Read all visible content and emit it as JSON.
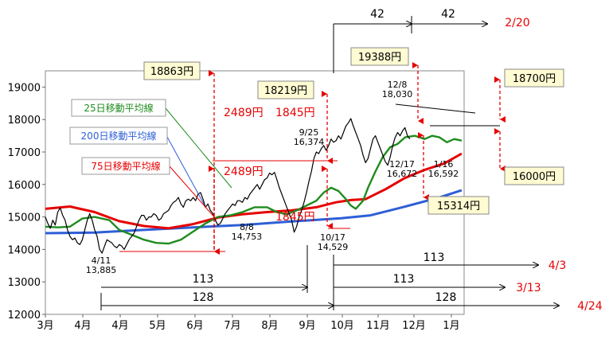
{
  "chart_data": {
    "type": "line",
    "title": "",
    "xlabel": "",
    "ylabel": "",
    "ylim": [
      12000,
      19500
    ],
    "y_ticks": [
      12000,
      13000,
      14000,
      15000,
      16000,
      17000,
      18000,
      19000
    ],
    "x_tick_labels": [
      "3月",
      "4月",
      "4月",
      "5月",
      "6月",
      "7月",
      "8月",
      "9月",
      "10月",
      "11月",
      "12月",
      "1月"
    ],
    "colors": {
      "price": "#000000",
      "ma25": "#1e8c1e",
      "ma75": "#e60000",
      "ma200": "#2e5fd6",
      "red": "#e60000",
      "box_fill": "#fffbd2",
      "box_border": "#8a8a8a"
    },
    "series": [
      {
        "name": "25日移動平均線",
        "color": "#1e8c1e",
        "points": [
          [
            0,
            14700
          ],
          [
            5,
            14680
          ],
          [
            10,
            14700
          ],
          [
            15,
            14950
          ],
          [
            20,
            15000
          ],
          [
            26,
            14900
          ],
          [
            30,
            14600
          ],
          [
            35,
            14450
          ],
          [
            40,
            14300
          ],
          [
            45,
            14200
          ],
          [
            50,
            14180
          ],
          [
            55,
            14300
          ],
          [
            60,
            14550
          ],
          [
            65,
            14800
          ],
          [
            70,
            15000
          ],
          [
            75,
            15050
          ],
          [
            80,
            15150
          ],
          [
            85,
            15300
          ],
          [
            90,
            15300
          ],
          [
            94,
            15150
          ],
          [
            98,
            15080
          ],
          [
            102,
            15200
          ],
          [
            106,
            15350
          ],
          [
            110,
            15500
          ],
          [
            113,
            15750
          ],
          [
            116,
            15900
          ],
          [
            119,
            15800
          ],
          [
            122,
            15550
          ],
          [
            124,
            15350
          ],
          [
            126,
            15250
          ],
          [
            129,
            15500
          ],
          [
            131,
            15900
          ],
          [
            134,
            16400
          ],
          [
            137,
            16850
          ],
          [
            140,
            17150
          ],
          [
            143,
            17250
          ],
          [
            146,
            17450
          ],
          [
            150,
            17500
          ],
          [
            154,
            17400
          ],
          [
            157,
            17500
          ],
          [
            160,
            17450
          ],
          [
            163,
            17300
          ],
          [
            166,
            17400
          ],
          [
            169,
            17350
          ]
        ]
      },
      {
        "name": "75日移動平均線",
        "color": "#e60000",
        "points": [
          [
            0,
            15250
          ],
          [
            10,
            15320
          ],
          [
            20,
            15150
          ],
          [
            30,
            14870
          ],
          [
            40,
            14720
          ],
          [
            50,
            14650
          ],
          [
            60,
            14780
          ],
          [
            70,
            14980
          ],
          [
            80,
            15080
          ],
          [
            90,
            15150
          ],
          [
            100,
            15200
          ],
          [
            110,
            15300
          ],
          [
            118,
            15450
          ],
          [
            124,
            15520
          ],
          [
            130,
            15550
          ],
          [
            138,
            15850
          ],
          [
            146,
            16200
          ],
          [
            154,
            16450
          ],
          [
            162,
            16650
          ],
          [
            169,
            16950
          ]
        ]
      },
      {
        "name": "200日移動平均線",
        "color": "#2e5fd6",
        "points": [
          [
            0,
            14500
          ],
          [
            20,
            14520
          ],
          [
            40,
            14600
          ],
          [
            60,
            14680
          ],
          [
            80,
            14750
          ],
          [
            100,
            14860
          ],
          [
            120,
            14960
          ],
          [
            132,
            15050
          ],
          [
            145,
            15300
          ],
          [
            160,
            15600
          ],
          [
            169,
            15820
          ]
        ]
      },
      {
        "name": "",
        "color": "#000000",
        "points": [
          [
            0,
            15000
          ],
          [
            1,
            14800
          ],
          [
            2,
            14650
          ],
          [
            3,
            14900
          ],
          [
            4,
            14750
          ],
          [
            5,
            15150
          ],
          [
            6,
            15280
          ],
          [
            7,
            15050
          ],
          [
            8,
            14900
          ],
          [
            9,
            14600
          ],
          [
            10,
            14400
          ],
          [
            11,
            14300
          ],
          [
            12,
            14350
          ],
          [
            13,
            14200
          ],
          [
            14,
            14150
          ],
          [
            15,
            14300
          ],
          [
            16,
            14600
          ],
          [
            17,
            14900
          ],
          [
            18,
            15100
          ],
          [
            19,
            14900
          ],
          [
            20,
            14600
          ],
          [
            21,
            14400
          ],
          [
            22,
            14000
          ],
          [
            23,
            13885
          ],
          [
            24,
            14100
          ],
          [
            25,
            14300
          ],
          [
            26,
            14250
          ],
          [
            27,
            14200
          ],
          [
            28,
            14100
          ],
          [
            29,
            14050
          ],
          [
            30,
            14150
          ],
          [
            31,
            14100
          ],
          [
            32,
            14000
          ],
          [
            33,
            14150
          ],
          [
            34,
            14300
          ],
          [
            35,
            14400
          ],
          [
            36,
            14500
          ],
          [
            37,
            14700
          ],
          [
            38,
            14900
          ],
          [
            39,
            15050
          ],
          [
            40,
            15050
          ],
          [
            41,
            14900
          ],
          [
            42,
            15000
          ],
          [
            43,
            15000
          ],
          [
            44,
            15100
          ],
          [
            45,
            15050
          ],
          [
            46,
            14900
          ],
          [
            47,
            14950
          ],
          [
            48,
            15100
          ],
          [
            49,
            15150
          ],
          [
            50,
            15200
          ],
          [
            51,
            15350
          ],
          [
            52,
            15450
          ],
          [
            53,
            15500
          ],
          [
            54,
            15600
          ],
          [
            55,
            15400
          ],
          [
            56,
            15300
          ],
          [
            57,
            15500
          ],
          [
            58,
            15550
          ],
          [
            59,
            15500
          ],
          [
            60,
            15600
          ],
          [
            61,
            15500
          ],
          [
            62,
            15700
          ],
          [
            63,
            15750
          ],
          [
            64,
            15550
          ],
          [
            65,
            15300
          ],
          [
            66,
            15400
          ],
          [
            67,
            15200
          ],
          [
            68,
            15100
          ],
          [
            69,
            14900
          ],
          [
            70,
            14753
          ],
          [
            71,
            14800
          ],
          [
            72,
            14950
          ],
          [
            73,
            15100
          ],
          [
            74,
            15200
          ],
          [
            75,
            15300
          ],
          [
            76,
            15400
          ],
          [
            77,
            15350
          ],
          [
            78,
            15500
          ],
          [
            79,
            15500
          ],
          [
            80,
            15450
          ],
          [
            81,
            15600
          ],
          [
            82,
            15550
          ],
          [
            83,
            15700
          ],
          [
            84,
            15800
          ],
          [
            85,
            15900
          ],
          [
            86,
            16000
          ],
          [
            87,
            15850
          ],
          [
            88,
            16000
          ],
          [
            89,
            16150
          ],
          [
            90,
            16200
          ],
          [
            91,
            16350
          ],
          [
            92,
            16300
          ],
          [
            93,
            16374
          ],
          [
            94,
            16150
          ],
          [
            95,
            15900
          ],
          [
            96,
            15700
          ],
          [
            97,
            15500
          ],
          [
            98,
            15300
          ],
          [
            99,
            15100
          ],
          [
            100,
            14900
          ],
          [
            101,
            14529
          ],
          [
            102,
            14700
          ],
          [
            103,
            15000
          ],
          [
            104,
            15200
          ],
          [
            105,
            15450
          ],
          [
            106,
            15750
          ],
          [
            107,
            16100
          ],
          [
            108,
            16400
          ],
          [
            109,
            16800
          ],
          [
            110,
            17000
          ],
          [
            111,
            16950
          ],
          [
            112,
            17100
          ],
          [
            113,
            17200
          ],
          [
            114,
            17050
          ],
          [
            115,
            17200
          ],
          [
            116,
            17400
          ],
          [
            117,
            17300
          ],
          [
            118,
            17350
          ],
          [
            119,
            17500
          ],
          [
            120,
            17400
          ],
          [
            121,
            17600
          ],
          [
            122,
            17800
          ],
          [
            123,
            17900
          ],
          [
            124,
            18030
          ],
          [
            125,
            17800
          ],
          [
            126,
            17600
          ],
          [
            127,
            17400
          ],
          [
            128,
            17200
          ],
          [
            129,
            16900
          ],
          [
            130,
            16672
          ],
          [
            131,
            16800
          ],
          [
            132,
            17100
          ],
          [
            133,
            17400
          ],
          [
            134,
            17500
          ],
          [
            135,
            17300
          ],
          [
            136,
            17100
          ],
          [
            137,
            16900
          ],
          [
            138,
            16700
          ],
          [
            139,
            16592
          ],
          [
            140,
            16850
          ],
          [
            141,
            17200
          ],
          [
            142,
            17450
          ],
          [
            143,
            17600
          ],
          [
            144,
            17500
          ],
          [
            145,
            17650
          ],
          [
            146,
            17750
          ],
          [
            147,
            17500
          ],
          [
            148,
            17400
          ]
        ]
      }
    ],
    "annotations": {
      "boxes": [
        {
          "text": "18863円"
        },
        {
          "text": "18219円"
        },
        {
          "text": "19388円"
        },
        {
          "text": "18700円"
        },
        {
          "text": "16000円"
        },
        {
          "text": "15314円"
        }
      ],
      "legend_labels": [
        {
          "text": "25日移動平均線"
        },
        {
          "text": "200日移動平均線"
        },
        {
          "text": "75日移動平均線"
        }
      ],
      "red_texts": [
        {
          "text": "2489円"
        },
        {
          "text": "1845円"
        },
        {
          "text": "2489円"
        },
        {
          "text": "1845円"
        }
      ],
      "point_labels": [
        {
          "date": "4/11",
          "value": "13,885"
        },
        {
          "date": "8/8",
          "value": "14,753"
        },
        {
          "date": "9/25",
          "value": "16,374"
        },
        {
          "date": "10/17",
          "value": "14,529"
        },
        {
          "date": "12/8",
          "value": "18,030"
        },
        {
          "date": "12/17",
          "value": "16,672"
        },
        {
          "date": "1/16",
          "value": "16,592"
        }
      ],
      "span_counts": [
        {
          "count": "42"
        },
        {
          "count": "42",
          "target": "2/20"
        },
        {
          "count": "113",
          "target": "4/3"
        },
        {
          "count": "113",
          "target": "3/13"
        },
        {
          "count": "113"
        },
        {
          "count": "128"
        },
        {
          "count": "128",
          "target": "4/24"
        }
      ]
    }
  }
}
